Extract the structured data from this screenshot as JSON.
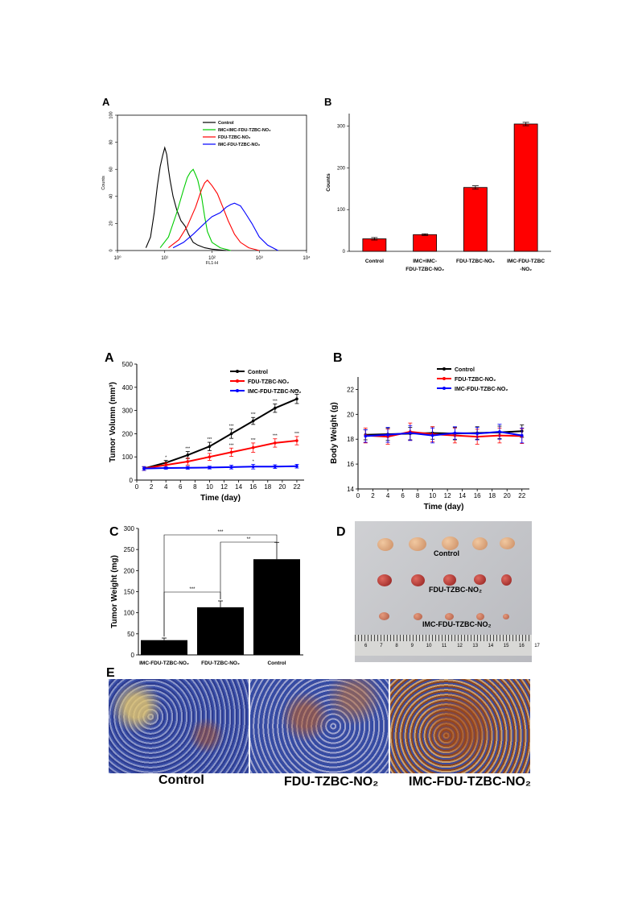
{
  "panels": {
    "top_a": "A",
    "top_b": "B",
    "a": "A",
    "b": "B",
    "c": "C",
    "d": "D",
    "e": "E"
  },
  "photo_d": {
    "labels": [
      "Control",
      "FDU-TZBC-NO₂",
      "IMC-FDU-TZBC-NO₂"
    ],
    "ruler_ticks": [
      "6",
      "7",
      "8",
      "9",
      "10",
      "11",
      "12",
      "13",
      "14",
      "15",
      "16",
      "17"
    ]
  },
  "panel_e": {
    "labels": [
      "Control",
      "FDU-TZBC-NO₂",
      "IMC-FDU-TZBC-NO₂"
    ]
  },
  "chart_data": [
    {
      "id": "flow",
      "type": "line",
      "xlabel": "FL1-H",
      "ylabel": "Counts",
      "xscale": "log",
      "xlim": [
        1,
        10000
      ],
      "ylim": [
        0,
        100
      ],
      "xticks": [
        "10⁰",
        "10¹",
        "10²",
        "10³",
        "10⁴"
      ],
      "yticks": [
        "0",
        "20",
        "40",
        "60",
        "80",
        "100"
      ],
      "legend_position": "top-right",
      "series": [
        {
          "name": "Control",
          "color": "#000000",
          "x": [
            4,
            5,
            6,
            7,
            8,
            9,
            10,
            11,
            12,
            13,
            15,
            18,
            22,
            27,
            32,
            40,
            50,
            70,
            100,
            200
          ],
          "y": [
            2,
            10,
            28,
            48,
            62,
            70,
            76,
            71,
            60,
            52,
            40,
            30,
            22,
            18,
            12,
            6,
            4,
            2,
            1,
            0
          ]
        },
        {
          "name": "IMC+IMC-FDU-TZBC-NO₂",
          "color": "#00cc00",
          "x": [
            8,
            12,
            18,
            25,
            30,
            35,
            40,
            45,
            50,
            60,
            70,
            80,
            100,
            150,
            250
          ],
          "y": [
            2,
            10,
            28,
            45,
            54,
            58,
            60,
            56,
            52,
            40,
            25,
            14,
            6,
            2,
            0
          ]
        },
        {
          "name": "FDU-TZBC-NO₂",
          "color": "#ff0000",
          "x": [
            12,
            20,
            30,
            45,
            60,
            70,
            80,
            100,
            130,
            170,
            220,
            300,
            400,
            600,
            1000
          ],
          "y": [
            2,
            8,
            18,
            32,
            45,
            50,
            52,
            48,
            42,
            32,
            22,
            12,
            6,
            2,
            0
          ]
        },
        {
          "name": "IMC-FDU-TZBC-NO₂",
          "color": "#0000ff",
          "x": [
            15,
            25,
            40,
            60,
            80,
            100,
            150,
            200,
            250,
            300,
            400,
            500,
            700,
            1000,
            1500,
            2500
          ],
          "y": [
            2,
            6,
            12,
            18,
            22,
            25,
            28,
            32,
            34,
            35,
            33,
            28,
            20,
            10,
            4,
            0
          ]
        }
      ]
    },
    {
      "id": "counts",
      "type": "bar",
      "ylabel": "Counts",
      "ylim": [
        0,
        330
      ],
      "yticks": [
        "0",
        "100",
        "200",
        "300"
      ],
      "categories": [
        "Control",
        "IMC+IMC-FDU-TZBC-NO₂",
        "FDU-TZBC-NO₂",
        "IMC-FDU-TZBC-NO₂"
      ],
      "category_lines": [
        [
          "Control"
        ],
        [
          "IMC+IMC-",
          "FDU-TZBC-NO₂"
        ],
        [
          "FDU-TZBC-NO₂"
        ],
        [
          "IMC-FDU-TZBC",
          "-NO₂"
        ]
      ],
      "values": [
        30,
        40,
        153,
        305
      ],
      "errors": [
        3,
        2,
        4,
        4
      ],
      "color": "#ff0000"
    },
    {
      "id": "volume",
      "type": "line",
      "xlabel": "Time (day)",
      "ylabel": "Tumor Volumn (mm³)",
      "xlim": [
        0,
        23
      ],
      "ylim": [
        0,
        500
      ],
      "xticks": [
        0,
        2,
        4,
        6,
        8,
        10,
        12,
        14,
        16,
        18,
        20,
        22
      ],
      "yticks": [
        0,
        100,
        200,
        300,
        400,
        500
      ],
      "legend_position": "top-right",
      "series": [
        {
          "name": "Control",
          "color": "#000000",
          "x": [
            1,
            4,
            7,
            10,
            13,
            16,
            19,
            22
          ],
          "y": [
            50,
            75,
            108,
            145,
            200,
            255,
            310,
            350
          ],
          "err": [
            8,
            10,
            15,
            18,
            20,
            15,
            18,
            20
          ],
          "sig": [
            "",
            "*",
            "***",
            "***",
            "***",
            "***",
            "***",
            "***"
          ]
        },
        {
          "name": "FDU-TZBC-NO₂",
          "color": "#ff0000",
          "x": [
            1,
            4,
            7,
            10,
            13,
            16,
            19,
            22
          ],
          "y": [
            50,
            65,
            80,
            100,
            120,
            140,
            160,
            170
          ],
          "err": [
            8,
            10,
            15,
            15,
            18,
            20,
            18,
            18
          ],
          "sig": [
            "",
            "",
            "*",
            "*",
            "***",
            "***",
            "***",
            "***"
          ]
        },
        {
          "name": "IMC-FDU-TZBC-NO₂",
          "color": "#0000ff",
          "x": [
            1,
            4,
            7,
            10,
            13,
            16,
            19,
            22
          ],
          "y": [
            50,
            52,
            53,
            54,
            56,
            58,
            58,
            60
          ],
          "err": [
            8,
            5,
            6,
            6,
            8,
            10,
            8,
            8
          ],
          "sig": [
            "",
            "",
            "",
            "",
            "",
            "*",
            "",
            ""
          ]
        }
      ]
    },
    {
      "id": "weight",
      "type": "line",
      "xlabel": "Time (day)",
      "ylabel": "Body Weight (g)",
      "xlim": [
        0,
        23
      ],
      "ylim": [
        14,
        23
      ],
      "xticks": [
        0,
        2,
        4,
        6,
        8,
        10,
        12,
        14,
        16,
        18,
        20,
        22
      ],
      "yticks": [
        14,
        16,
        18,
        20,
        22
      ],
      "legend_position": "top-right",
      "series": [
        {
          "name": "Control",
          "color": "#000000",
          "x": [
            1,
            4,
            7,
            10,
            13,
            16,
            19,
            22
          ],
          "y": [
            18.35,
            18.4,
            18.45,
            18.5,
            18.45,
            18.5,
            18.55,
            18.65
          ],
          "err": [
            0.4,
            0.5,
            0.5,
            0.5,
            0.5,
            0.5,
            0.5,
            0.5
          ]
        },
        {
          "name": "FDU-TZBC-NO₂",
          "color": "#ff0000",
          "x": [
            1,
            4,
            7,
            10,
            13,
            16,
            19,
            22
          ],
          "y": [
            18.3,
            18.2,
            18.6,
            18.4,
            18.3,
            18.2,
            18.3,
            18.25
          ],
          "err": [
            0.6,
            0.6,
            0.7,
            0.6,
            0.6,
            0.6,
            0.6,
            0.6
          ]
        },
        {
          "name": "IMC-FDU-TZBC-NO₂",
          "color": "#0000ff",
          "x": [
            1,
            4,
            7,
            10,
            13,
            16,
            19,
            22
          ],
          "y": [
            18.25,
            18.35,
            18.5,
            18.3,
            18.5,
            18.45,
            18.6,
            18.3
          ],
          "err": [
            0.5,
            0.6,
            0.6,
            0.6,
            0.5,
            0.5,
            0.6,
            0.6
          ]
        }
      ]
    },
    {
      "id": "tumor_weight",
      "type": "bar",
      "ylabel": "Tumor Weight (mg)",
      "ylim": [
        0,
        300
      ],
      "yticks": [
        0,
        50,
        100,
        150,
        200,
        250,
        300
      ],
      "categories": [
        "IMC-FDU-TZBC-NO₂",
        "FDU-TZBC-NO₂",
        "Control"
      ],
      "values": [
        35,
        113,
        227
      ],
      "errors": [
        5,
        15,
        40
      ],
      "color": "#000000",
      "significance": [
        {
          "from": 0,
          "to": 2,
          "label": "***"
        },
        {
          "from": 1,
          "to": 2,
          "label": "**"
        },
        {
          "from": 0,
          "to": 1,
          "label": "***"
        }
      ]
    }
  ]
}
